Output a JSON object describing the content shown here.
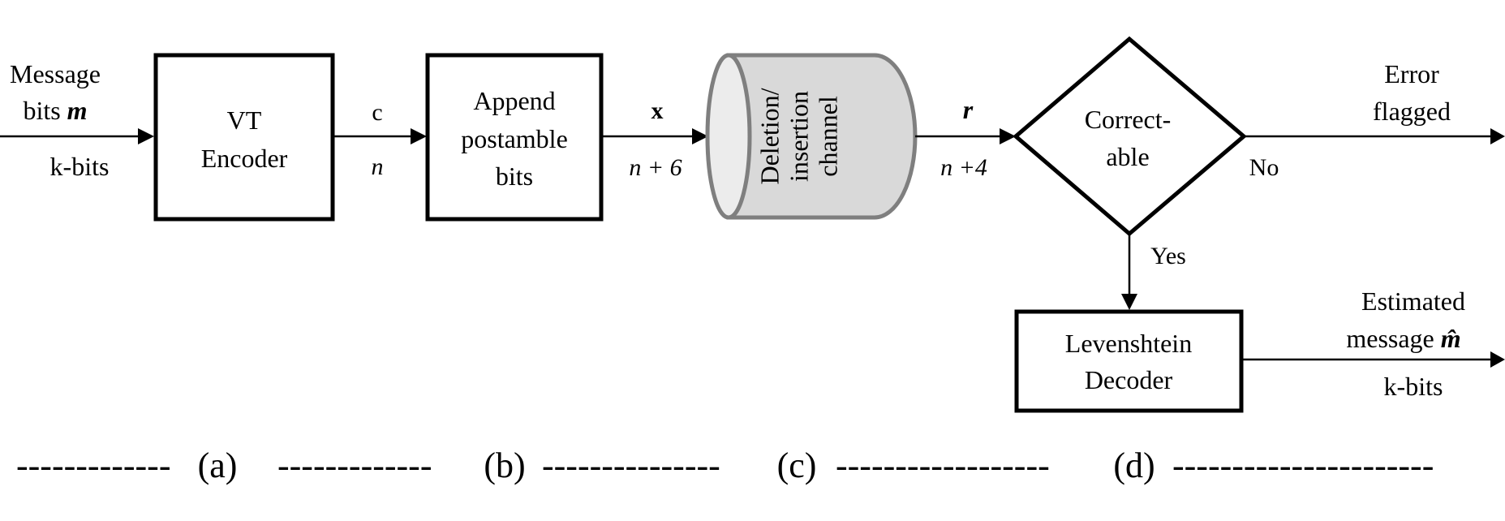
{
  "inputs": {
    "message_line1": "Message",
    "message_line2_prefix": "bits",
    "message_symbol": "m",
    "message_size": "k-bits"
  },
  "blocks": {
    "vt_encoder": {
      "line1": "VT",
      "line2": "Encoder"
    },
    "append": {
      "line1": "Append",
      "line2": "postamble",
      "line3": "bits"
    },
    "channel": {
      "line1": "Deletion/",
      "line2": "insertion",
      "line3": "channel"
    },
    "decision": {
      "line1": "Correct-",
      "line2": "able"
    },
    "levenshtein": {
      "line1": "Levenshtein",
      "line2": "Decoder"
    }
  },
  "signals": {
    "c_label": "c",
    "c_len": "n",
    "x_label": "x",
    "x_len": "n + 6",
    "r_label": "r",
    "r_len": "n +4"
  },
  "branches": {
    "no": "No",
    "yes": "Yes"
  },
  "outputs": {
    "error_line1": "Error",
    "error_line2": "flagged",
    "estimated_line1": "Estimated",
    "estimated_line2_prefix": "message",
    "estimated_symbol": "m̂",
    "estimated_size": "k-bits"
  },
  "stages": {
    "dashes_1": "-------------",
    "a": "(a)",
    "dashes_2": "-------------",
    "b": "(b)",
    "dashes_3": "---------------",
    "c": "(c)",
    "dashes_4": "------------------",
    "d": "(d)",
    "dashes_5": "----------------------"
  }
}
